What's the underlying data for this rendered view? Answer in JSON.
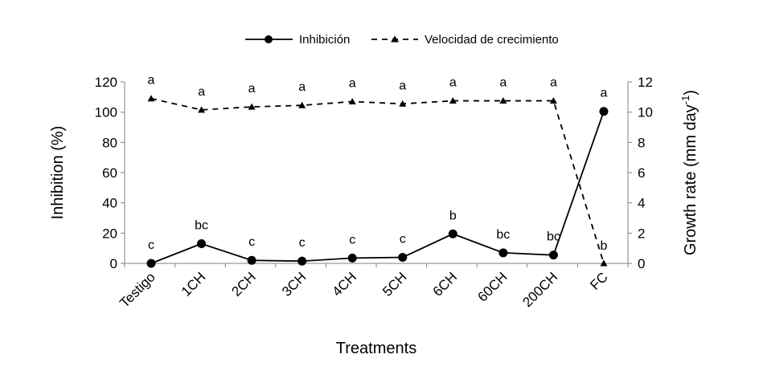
{
  "chart_data": {
    "type": "line",
    "categories": [
      "Testigo",
      "1CH",
      "2CH",
      "3CH",
      "4CH",
      "5CH",
      "6CH",
      "60CH",
      "200CH",
      "FC"
    ],
    "xlabel": "Treatments",
    "ylabel_left": "Inhibition (%)",
    "ylabel_right_main": "Growth rate (mm day",
    "ylabel_right_sup": "-1",
    "ylabel_right_close": ")",
    "ylim_left": [
      0,
      120
    ],
    "ylim_right": [
      0,
      12
    ],
    "yticks_left": [
      "0",
      "20",
      "40",
      "60",
      "80",
      "100",
      "120"
    ],
    "yticks_right": [
      "0",
      "2",
      "4",
      "6",
      "8",
      "10",
      "12"
    ],
    "grid": false,
    "legend_position": "top-center",
    "series": [
      {
        "name": "Inhibición",
        "axis": "left",
        "style": "solid",
        "marker": "circle",
        "color": "#000000",
        "values": [
          0,
          13,
          2,
          1.5,
          3.5,
          4,
          19.5,
          7,
          5.5,
          100.5
        ],
        "letters": [
          "c",
          "bc",
          "c",
          "c",
          "c",
          "c",
          "b",
          "bc",
          "bc",
          "a"
        ]
      },
      {
        "name": "Velocidad de crecimiento",
        "axis": "right",
        "style": "dashed",
        "marker": "triangle",
        "color": "#000000",
        "values": [
          10.9,
          10.15,
          10.35,
          10.45,
          10.7,
          10.55,
          10.75,
          10.75,
          10.75,
          0
        ],
        "letters": [
          "a",
          "a",
          "a",
          "a",
          "a",
          "a",
          "a",
          "a",
          "a",
          "b"
        ]
      }
    ]
  }
}
